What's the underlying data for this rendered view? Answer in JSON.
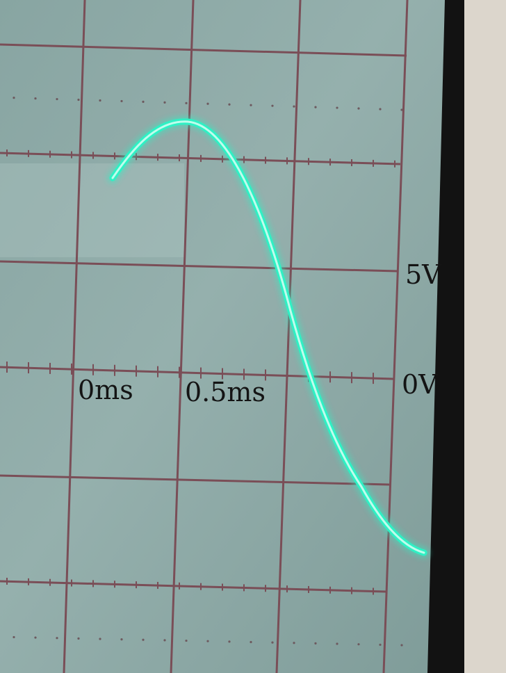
{
  "annotations": {
    "time_origin": "0ms",
    "time_half": "0.5ms",
    "volt_5": "5V",
    "volt_0": "0V"
  },
  "colors": {
    "screen": "#8eaaa7",
    "grid": "#7a4e57",
    "trace": "#2ff0c4",
    "bezel": "#121212",
    "wall": "#dcd6cc"
  }
}
